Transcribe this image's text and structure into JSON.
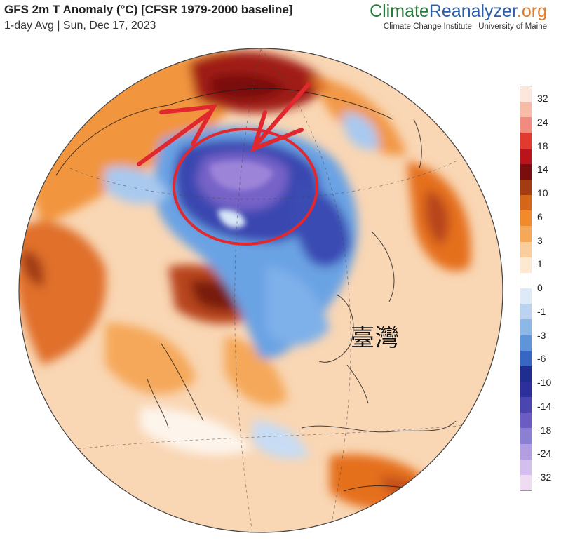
{
  "header": {
    "title": "GFS 2m T Anomaly (°C) [CFSR 1979-2000 baseline]",
    "subtitle": "1-day Avg | Sun, Dec 17, 2023"
  },
  "brand": {
    "part1": "Climate",
    "part2": "Reanalyzer",
    "part3": ".org",
    "sub": "Climate Change Institute | University of Maine"
  },
  "annotation": {
    "label": "臺灣"
  },
  "legend": {
    "labels": [
      "32",
      "24",
      "18",
      "14",
      "10",
      "6",
      "3",
      "1",
      "0",
      "-1",
      "-3",
      "-6",
      "-10",
      "-14",
      "-18",
      "-24",
      "-32"
    ],
    "colors": [
      "#fde6dc",
      "#f8bba6",
      "#f08b7e",
      "#e23a2e",
      "#b8141a",
      "#7a0d0d",
      "#a33c12",
      "#d4661a",
      "#f08a2b",
      "#f5a85a",
      "#f9cd9c",
      "#fde8d2",
      "#ffffff",
      "#dfeaf8",
      "#b9d3f0",
      "#8db7e6",
      "#5e94d8",
      "#3867c3",
      "#1f2d8e",
      "#2c2f9c",
      "#4b45b0",
      "#6a5cc3",
      "#8a7fd2",
      "#b49ee2",
      "#d2bfee",
      "#f0dcf2"
    ]
  }
}
